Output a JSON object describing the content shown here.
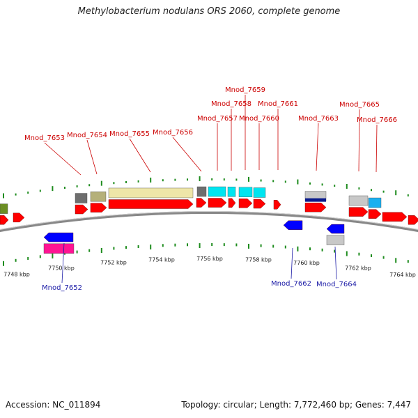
{
  "title": "Methylobacterium nodulans ORS 2060, complete genome",
  "footer": {
    "accession": "Accession: NC_011894",
    "summary": "Topology: circular; Length: 7,772,460 bp; Genes: 7,447"
  },
  "axis": {
    "unit": "kbp",
    "ticks": [
      "7748 kbp",
      "7750 kbp",
      "7752 kbp",
      "7754 kbp",
      "7756 kbp",
      "7758 kbp",
      "7760 kbp",
      "7762 kbp",
      "7764 kbp"
    ]
  },
  "colors": {
    "forward_cds": "#ff0000",
    "reverse_cds": "#0000ff",
    "backbone": "#888888",
    "tick": "#1e8c1e",
    "label_forward": "#cc0000",
    "label_reverse": "#1a1aa6"
  },
  "gene_labels": {
    "top": [
      "Mnod_7653",
      "Mnod_7654",
      "Mnod_7655",
      "Mnod_7656",
      "Mnod_7657",
      "Mnod_7658",
      "Mnod_7659",
      "Mnod_7660",
      "Mnod_7661",
      "Mnod_7663",
      "Mnod_7665",
      "Mnod_7666"
    ],
    "bottom": [
      "Mnod_7652",
      "Mnod_7662",
      "Mnod_7664"
    ]
  }
}
